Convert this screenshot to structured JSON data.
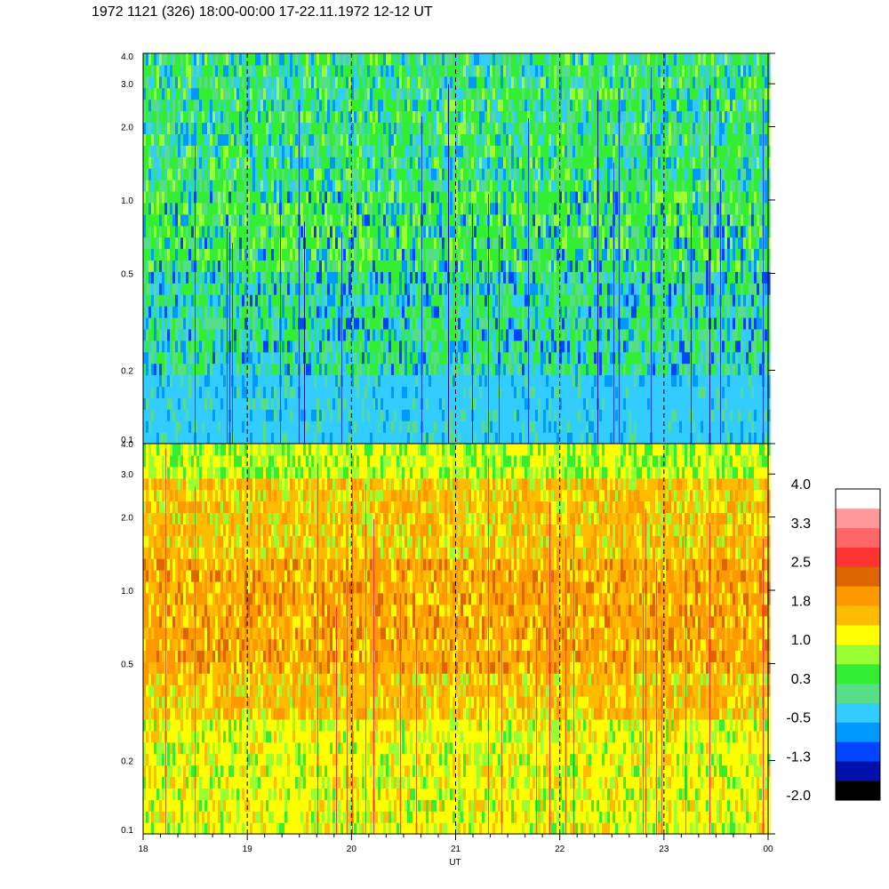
{
  "title": "1972 1121 (326) 18:00-00:00 17-22.11.1972  12-12 UT",
  "chart_data": [
    {
      "type": "heatmap",
      "panel": "upper",
      "y_scale": "log",
      "ylim": [
        0.1,
        4.0
      ],
      "y_ticks": [
        "0.1",
        "0.2",
        "0.5",
        "1.0",
        "2.0",
        "3.0",
        "4.0"
      ],
      "xlim": [
        18,
        24
      ],
      "x_tick_labels": [
        "18",
        "19",
        "20",
        "21",
        "22",
        "23",
        "00"
      ],
      "dashed_hour_lines": [
        19,
        20,
        21,
        22,
        23
      ],
      "dominant_colors": [
        "#33ccff",
        "#33ee33",
        "#55dd88",
        "#0099ff",
        "#0044ff",
        "#99ff33"
      ]
    },
    {
      "type": "heatmap",
      "panel": "lower",
      "y_scale": "log",
      "ylim": [
        0.1,
        4.0
      ],
      "y_ticks": [
        "0.1",
        "0.2",
        "0.5",
        "1.0",
        "2.0",
        "3.0",
        "4.0"
      ],
      "xlim": [
        18,
        24
      ],
      "x_tick_labels": [
        "18",
        "19",
        "20",
        "21",
        "22",
        "23",
        "00"
      ],
      "xlabel": "UT",
      "dashed_hour_lines": [
        19,
        20,
        21,
        22,
        23
      ],
      "dominant_colors": [
        "#ffff00",
        "#ffbb00",
        "#ff9900",
        "#99ff33",
        "#33ee33",
        "#dd6600"
      ]
    }
  ],
  "colorbar": {
    "colors": [
      "#000000",
      "#0011aa",
      "#0044ff",
      "#0099ff",
      "#33ccff",
      "#55dd88",
      "#33ee33",
      "#99ff33",
      "#ffff00",
      "#ffbb00",
      "#ff9900",
      "#dd6600",
      "#ff3333",
      "#ff6666",
      "#ff9999",
      "#ffffff"
    ],
    "labels": [
      "-2.0",
      "-1.3",
      "-0.5",
      "0.3",
      "1.0",
      "1.8",
      "2.5",
      "3.3",
      "4.0"
    ]
  }
}
